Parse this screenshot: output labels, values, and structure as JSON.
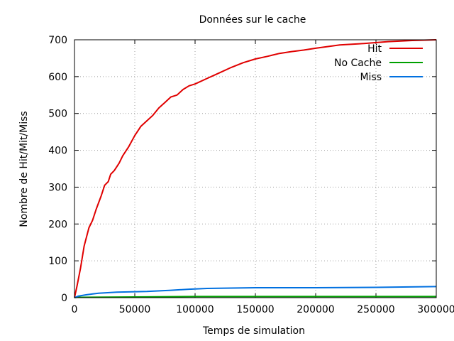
{
  "chart_data": {
    "type": "line",
    "title": "Données sur le cache",
    "xlabel": "Temps de simulation",
    "ylabel": "Nombre de Hit/Mit/Miss",
    "xlim": [
      0,
      300000
    ],
    "ylim": [
      0,
      700
    ],
    "xticks": [
      0,
      50000,
      100000,
      150000,
      200000,
      250000,
      300000
    ],
    "yticks": [
      0,
      100,
      200,
      300,
      400,
      500,
      600,
      700
    ],
    "grid": true,
    "legend_position": "top-right",
    "series": [
      {
        "name": "Hit",
        "color": "#e00000",
        "x": [
          0,
          2000,
          5000,
          8000,
          12000,
          15000,
          18000,
          22000,
          25000,
          28000,
          30000,
          33000,
          37000,
          40000,
          45000,
          50000,
          55000,
          60000,
          65000,
          70000,
          75000,
          80000,
          85000,
          90000,
          95000,
          100000,
          110000,
          120000,
          130000,
          140000,
          150000,
          160000,
          170000,
          180000,
          190000,
          200000,
          220000,
          240000,
          260000,
          280000,
          300000
        ],
        "y": [
          0,
          30,
          80,
          140,
          190,
          210,
          240,
          275,
          305,
          315,
          335,
          345,
          365,
          385,
          410,
          440,
          465,
          480,
          495,
          515,
          530,
          545,
          550,
          565,
          575,
          580,
          595,
          610,
          625,
          638,
          648,
          655,
          663,
          668,
          672,
          677,
          686,
          690,
          695,
          698,
          700
        ]
      },
      {
        "name": "No Cache",
        "color": "#00a000",
        "x": [
          0,
          2000,
          50000,
          100000,
          300000
        ],
        "y": [
          0,
          1,
          2,
          3,
          3
        ]
      },
      {
        "name": "Miss",
        "color": "#0070e0",
        "x": [
          0,
          3000,
          10000,
          15000,
          20000,
          35000,
          60000,
          80000,
          95000,
          110000,
          150000,
          200000,
          250000,
          300000
        ],
        "y": [
          0,
          4,
          8,
          10,
          12,
          15,
          17,
          20,
          23,
          25,
          27,
          27,
          28,
          30
        ]
      }
    ]
  }
}
